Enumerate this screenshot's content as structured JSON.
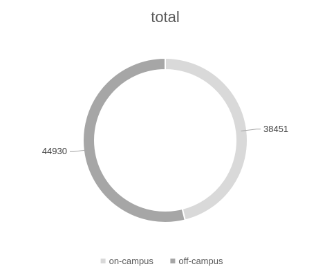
{
  "chart_data": {
    "type": "pie",
    "variant": "doughnut",
    "title": "total",
    "categories": [
      "on-campus",
      "off-campus"
    ],
    "values": [
      38451,
      44930
    ],
    "colors": [
      "#d9d9d9",
      "#a6a6a6"
    ],
    "data_labels": [
      "38451",
      "44930"
    ],
    "legend": {
      "position": "bottom",
      "items": [
        "on-campus",
        "off-campus"
      ]
    }
  }
}
